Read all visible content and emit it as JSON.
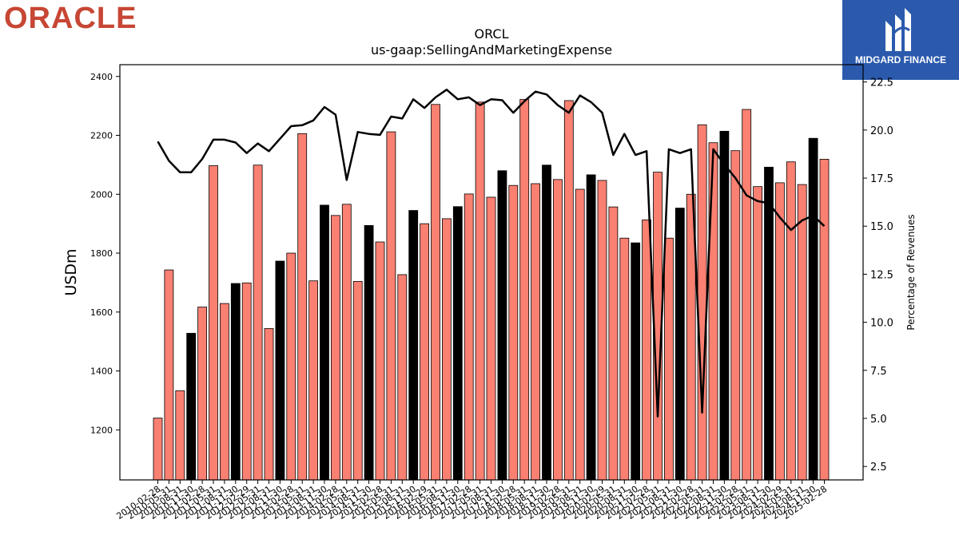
{
  "logos": {
    "left_text": "ORACLE",
    "right_text": "MIDGARD FINANCE"
  },
  "colors": {
    "bar_default": "#fa8072",
    "bar_highlight": "#000000",
    "line": "#000000",
    "oracle_red": "#c74634",
    "midgard_blue": "#2b5aad"
  },
  "chart_data": {
    "type": "bar",
    "title": "ORCL",
    "subtitle": "us-gaap:SellingAndMarketingExpense",
    "ylabel": "USDm",
    "y2label": "Percentage of Revenues",
    "ylim": [
      1030,
      2440
    ],
    "y2lim": [
      1.8,
      23.4
    ],
    "yticks": [
      1200,
      1400,
      1600,
      1800,
      2000,
      2200,
      2400
    ],
    "y2ticks": [
      "2.5",
      "5.0",
      "7.5",
      "10.0",
      "12.5",
      "15.0",
      "17.5",
      "20.0",
      "22.5"
    ],
    "y2tick_values": [
      2.5,
      5.0,
      7.5,
      10.0,
      12.5,
      15.0,
      17.5,
      20.0,
      22.5
    ],
    "x_tick_labels": [
      "2010-02-28",
      "2010-05-31",
      "2010-08-31",
      "2010-11-30",
      "2011-02-28",
      "2011-05-31",
      "2011-08-31",
      "2011-11-30",
      "2012-02-29",
      "2012-05-31",
      "2012-08-31",
      "2012-11-30",
      "2013-02-28",
      "2013-05-31",
      "2013-08-31",
      "2013-11-30",
      "2014-02-28",
      "2014-05-31",
      "2014-08-31",
      "2014-11-30",
      "2015-02-28",
      "2015-05-31",
      "2015-08-31",
      "2015-11-30",
      "2016-02-29",
      "2016-05-31",
      "2016-08-31",
      "2016-11-30",
      "2017-02-28",
      "2017-05-31",
      "2017-08-31",
      "2017-11-30",
      "2018-02-28",
      "2018-05-31",
      "2018-08-31",
      "2018-11-30",
      "2019-02-28",
      "2019-05-31",
      "2019-08-31",
      "2019-11-30",
      "2020-02-29",
      "2020-05-31",
      "2020-08-31",
      "2020-11-30",
      "2021-02-28",
      "2021-05-31",
      "2021-08-31",
      "2021-11-30",
      "2022-02-28",
      "2022-05-31",
      "2022-08-31",
      "2022-11-30",
      "2023-02-28",
      "2023-05-31",
      "2023-08-31",
      "2023-11-30",
      "2024-02-29",
      "2024-05-31",
      "2024-08-31",
      "2024-11-30",
      "2025-02-28"
    ],
    "bars": [
      {
        "value": 1240,
        "highlight": false
      },
      {
        "value": 1743,
        "highlight": false
      },
      {
        "value": 1333,
        "highlight": false
      },
      {
        "value": 1528,
        "highlight": true
      },
      {
        "value": 1617,
        "highlight": false
      },
      {
        "value": 2097,
        "highlight": false
      },
      {
        "value": 1629,
        "highlight": false
      },
      {
        "value": 1697,
        "highlight": true
      },
      {
        "value": 1699,
        "highlight": false
      },
      {
        "value": 2099,
        "highlight": false
      },
      {
        "value": 1544,
        "highlight": false
      },
      {
        "value": 1773,
        "highlight": true
      },
      {
        "value": 1800,
        "highlight": false
      },
      {
        "value": 2206,
        "highlight": false
      },
      {
        "value": 1706,
        "highlight": false
      },
      {
        "value": 1963,
        "highlight": true
      },
      {
        "value": 1928,
        "highlight": false
      },
      {
        "value": 1966,
        "highlight": false
      },
      {
        "value": 1704,
        "highlight": false
      },
      {
        "value": 1894,
        "highlight": true
      },
      {
        "value": 1838,
        "highlight": false
      },
      {
        "value": 2212,
        "highlight": false
      },
      {
        "value": 1727,
        "highlight": false
      },
      {
        "value": 1945,
        "highlight": true
      },
      {
        "value": 1900,
        "highlight": false
      },
      {
        "value": 2305,
        "highlight": false
      },
      {
        "value": 1917,
        "highlight": false
      },
      {
        "value": 1958,
        "highlight": true
      },
      {
        "value": 2001,
        "highlight": false
      },
      {
        "value": 2313,
        "highlight": false
      },
      {
        "value": 1990,
        "highlight": false
      },
      {
        "value": 2080,
        "highlight": true
      },
      {
        "value": 2030,
        "highlight": false
      },
      {
        "value": 2322,
        "highlight": false
      },
      {
        "value": 2036,
        "highlight": false
      },
      {
        "value": 2099,
        "highlight": true
      },
      {
        "value": 2050,
        "highlight": false
      },
      {
        "value": 2318,
        "highlight": false
      },
      {
        "value": 2017,
        "highlight": false
      },
      {
        "value": 2066,
        "highlight": true
      },
      {
        "value": 2047,
        "highlight": false
      },
      {
        "value": 1957,
        "highlight": false
      },
      {
        "value": 1851,
        "highlight": false
      },
      {
        "value": 1835,
        "highlight": true
      },
      {
        "value": 1913,
        "highlight": false
      },
      {
        "value": 2075,
        "highlight": false
      },
      {
        "value": 1851,
        "highlight": false
      },
      {
        "value": 1953,
        "highlight": true
      },
      {
        "value": 2000,
        "highlight": false
      },
      {
        "value": 2236,
        "highlight": false
      },
      {
        "value": 2175,
        "highlight": false
      },
      {
        "value": 2214,
        "highlight": true
      },
      {
        "value": 2148,
        "highlight": false
      },
      {
        "value": 2288,
        "highlight": false
      },
      {
        "value": 2026,
        "highlight": false
      },
      {
        "value": 2092,
        "highlight": true
      },
      {
        "value": 2039,
        "highlight": false
      },
      {
        "value": 2110,
        "highlight": false
      },
      {
        "value": 2033,
        "highlight": false
      },
      {
        "value": 2190,
        "highlight": true
      },
      {
        "value": 2119,
        "highlight": false
      }
    ],
    "line_values": [
      19.4,
      18.4,
      17.8,
      17.8,
      18.5,
      19.5,
      19.5,
      19.35,
      18.8,
      19.3,
      18.9,
      19.55,
      20.2,
      20.25,
      20.5,
      21.2,
      20.8,
      17.4,
      19.9,
      19.8,
      19.75,
      20.7,
      20.6,
      21.6,
      21.15,
      21.7,
      22.1,
      21.6,
      21.7,
      21.3,
      21.6,
      21.55,
      20.9,
      21.5,
      22.0,
      21.85,
      21.3,
      20.9,
      21.8,
      21.45,
      20.9,
      18.7,
      19.8,
      18.7,
      18.9,
      5.1,
      19.0,
      18.8,
      19.0,
      5.3,
      19.0,
      18.2,
      17.5,
      16.6,
      16.3,
      16.2,
      15.45,
      14.8,
      15.3,
      15.55,
      15.0
    ]
  }
}
